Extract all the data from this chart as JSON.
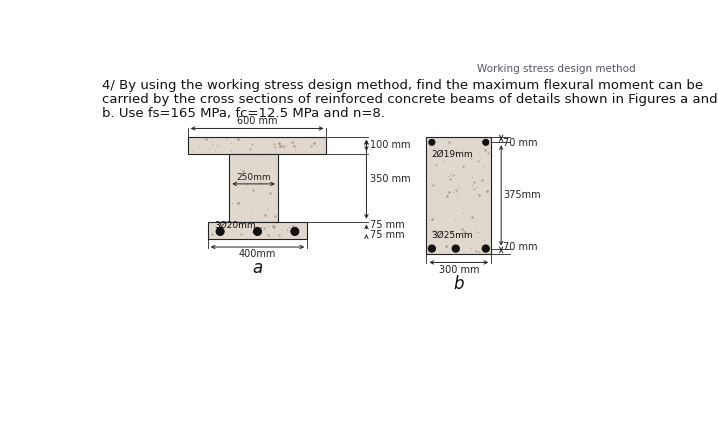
{
  "bg_color": "#ffffff",
  "text_color": "#111111",
  "header_text": "Working stress design method",
  "header_color": "#555566",
  "problem_lines": [
    "4/ By using the working stress design method, find the maximum flexural moment can be",
    "carried by the cross sections of reinforced concrete beams of details shown in Figures a and",
    "b. Use fs=165 MPa, fc=12.5 MPa and n=8."
  ],
  "beam_a": {
    "bar_label": "3Ø20mm",
    "dim_600": "600 mm",
    "dim_250": "250mm",
    "dim_350": "350 mm",
    "dim_100": "100 mm",
    "dim_75a": "75 mm",
    "dim_75b": "75 mm",
    "dim_400": "400mm",
    "label": "a"
  },
  "beam_b": {
    "bar_label": "3Ø25mm",
    "top_bar_label": "2Ø19mm",
    "dim_70top": "70 mm",
    "dim_375": "375mm",
    "dim_70bot": "70 mm",
    "dim_300": "300 mm",
    "label": "b"
  },
  "concrete_color": "#e0d8cc",
  "line_color": "#222222",
  "dot_color": "#111111"
}
